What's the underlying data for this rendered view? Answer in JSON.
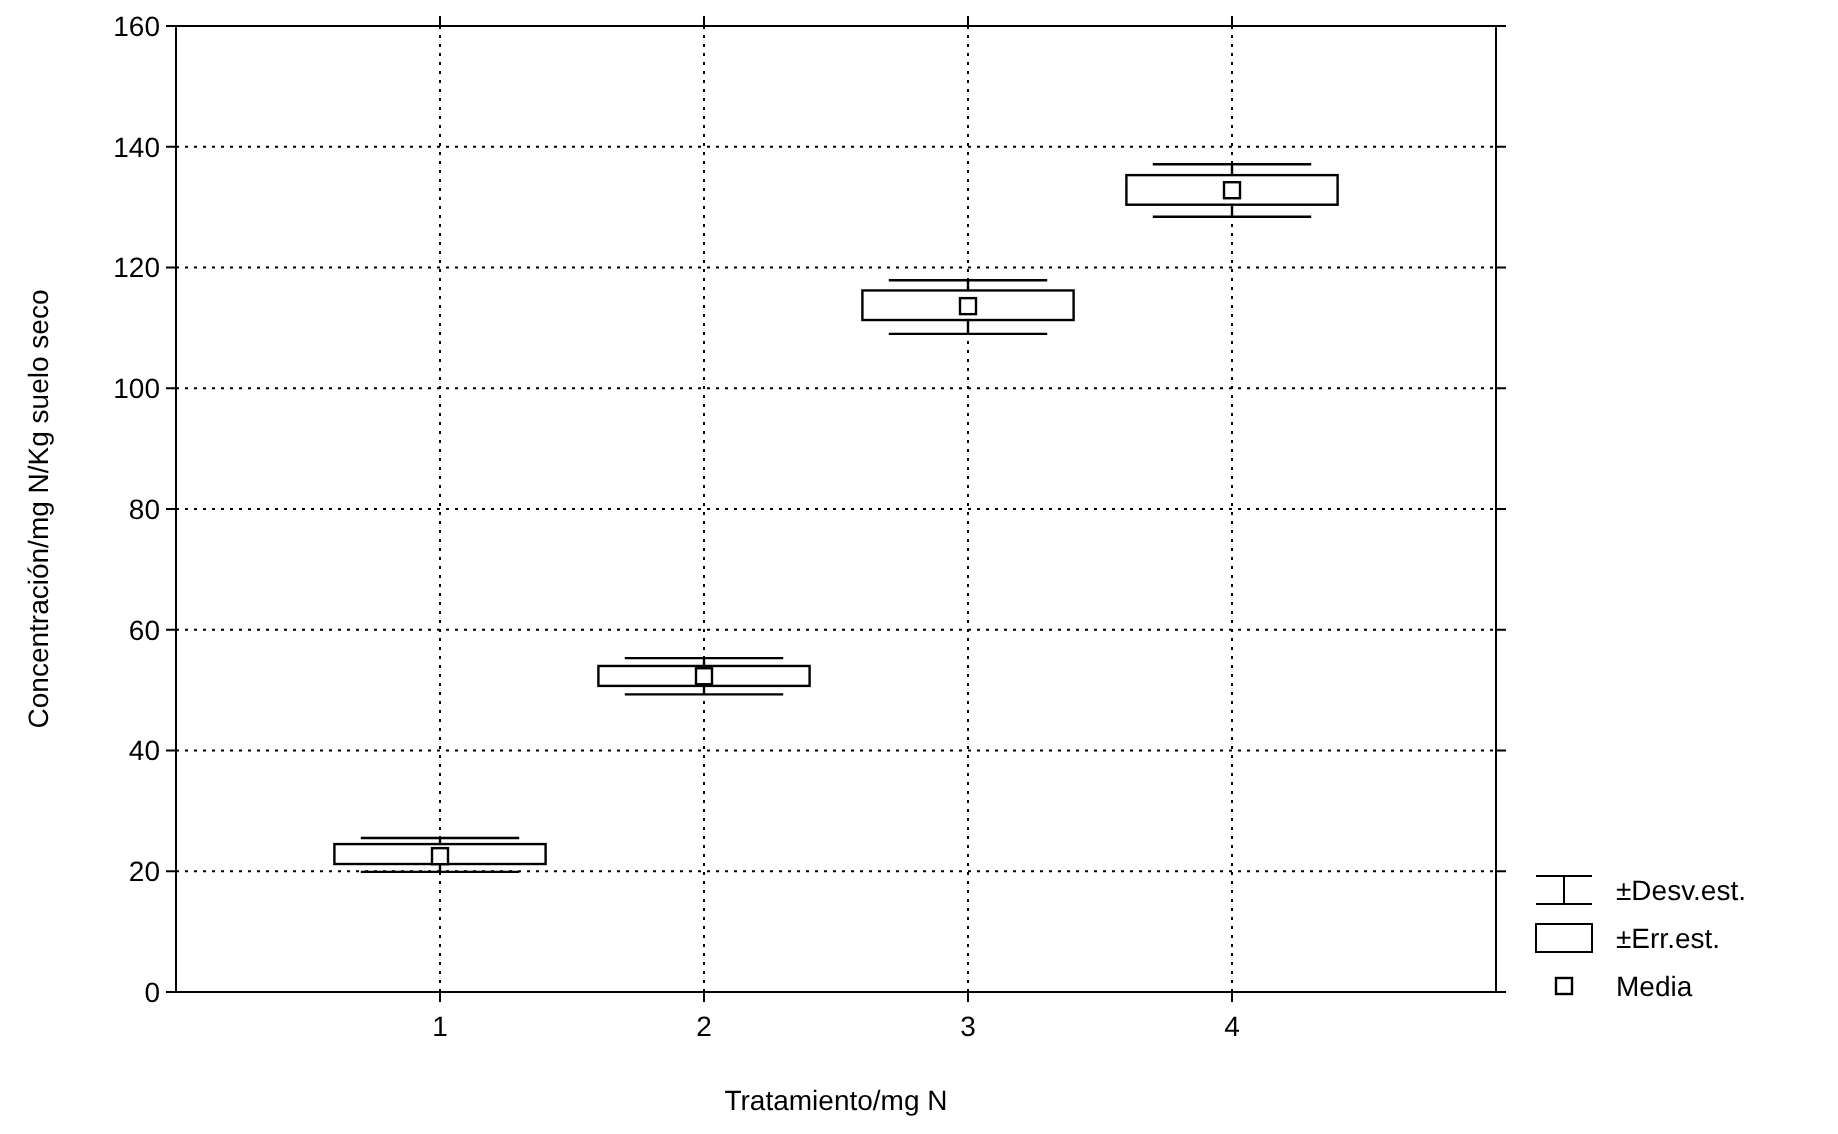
{
  "chart_data": {
    "type": "box",
    "xlabel": "Tratamiento/mg N",
    "ylabel": "Concentración/mg N/Kg suelo seco",
    "categories": [
      "1",
      "2",
      "3",
      "4"
    ],
    "boxes": [
      {
        "low": 19.9,
        "q1": 21.2,
        "q3": 24.5,
        "high": 25.5,
        "mean": 22.5
      },
      {
        "low": 49.3,
        "q1": 50.7,
        "q3": 54,
        "high": 55.3,
        "mean": 52.3
      },
      {
        "low": 109,
        "q1": 111.3,
        "q3": 116.2,
        "high": 117.9,
        "mean": 113.6
      },
      {
        "low": 128.4,
        "q1": 130.4,
        "q3": 135.3,
        "high": 137.1,
        "mean": 132.8
      }
    ],
    "ylim": [
      0,
      160
    ],
    "yticks": [
      0,
      20,
      40,
      60,
      80,
      100,
      120,
      140,
      160
    ],
    "grid": true,
    "marker": "square",
    "annotations": [
      "±Desv.est.",
      "±Err.est.",
      "Media"
    ]
  }
}
